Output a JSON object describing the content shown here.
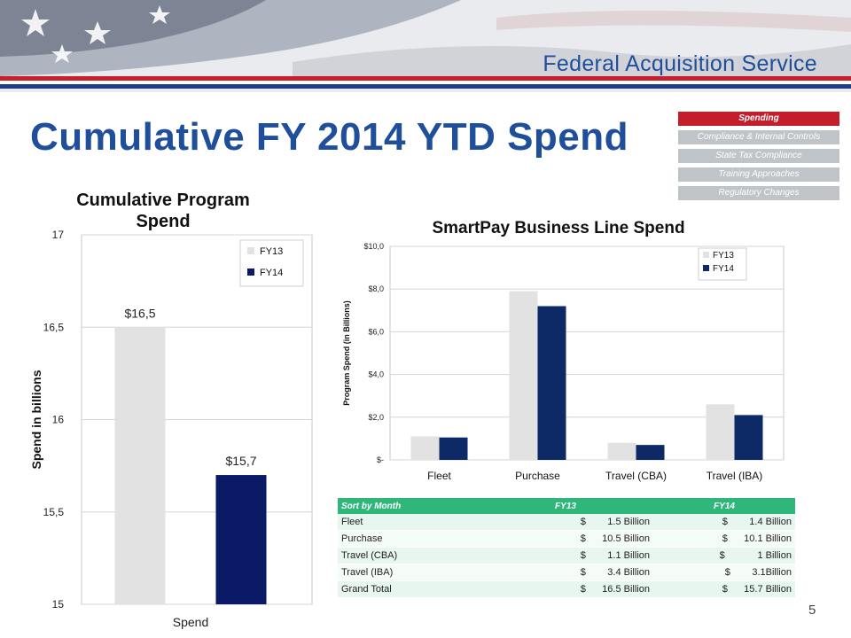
{
  "header": {
    "service_name": "Federal Acquisition Service",
    "title": "Cumulative FY 2014 YTD Spend"
  },
  "nav": {
    "items": [
      {
        "label": "Spending",
        "active": true
      },
      {
        "label": "Compliance & Internal Controls",
        "active": false
      },
      {
        "label": "State Tax Compliance",
        "active": false
      },
      {
        "label": "Training Approaches",
        "active": false
      },
      {
        "label": "Regulatory Changes",
        "active": false
      }
    ]
  },
  "colors": {
    "fy13": "#e2e2e2",
    "fy14": "#0b1a66",
    "fy14_alt": "#0d2a66",
    "accent_red": "#c41e2a",
    "table_header": "#2fb779",
    "title_blue": "#1f4e9a"
  },
  "chart_data": [
    {
      "type": "bar",
      "title": "Cumulative Program Spend",
      "title_lines": [
        "Cumulative Program",
        "Spend"
      ],
      "categories": [
        "Spend"
      ],
      "series": [
        {
          "name": "FY13",
          "values": [
            16.5
          ],
          "label": "$16,5"
        },
        {
          "name": "FY14",
          "values": [
            15.7
          ],
          "label": "$15,7"
        }
      ],
      "ylabel": "Spend in billions",
      "xlabel": "",
      "ylim": [
        15,
        17
      ],
      "yticks": [
        15,
        15.5,
        16,
        16.5,
        17
      ],
      "ytick_labels": [
        "15",
        "15,5",
        "16",
        "16,5",
        "17"
      ],
      "legend": "top-right",
      "grid": true
    },
    {
      "type": "bar",
      "title": "SmartPay Business Line Spend",
      "categories": [
        "Fleet",
        "Purchase",
        "Travel (CBA)",
        "Travel (IBA)"
      ],
      "series": [
        {
          "name": "FY13",
          "values": [
            1.1,
            7.9,
            0.8,
            2.6
          ]
        },
        {
          "name": "FY14",
          "values": [
            1.05,
            7.2,
            0.7,
            2.1
          ]
        }
      ],
      "ylabel": "Program Spend (in Billions)",
      "xlabel": "",
      "ylim": [
        0,
        10
      ],
      "yticks": [
        0,
        2,
        4,
        6,
        8,
        10
      ],
      "ytick_labels": [
        "$-",
        "$2,0",
        "$4,0",
        "$6,0",
        "$8,0",
        "$10,0"
      ],
      "legend": "top-right",
      "grid": true
    }
  ],
  "table": {
    "headers": [
      "Sort by Month",
      "FY13",
      "FY14"
    ],
    "rows": [
      [
        "Fleet",
        "$        1.5 Billion",
        "$        1.4 Billion"
      ],
      [
        "Purchase",
        "$      10.5 Billion",
        "$      10.1 Billion"
      ],
      [
        "Travel (CBA)",
        "$        1.1 Billion",
        "$            1 Billion"
      ],
      [
        "Travel (IBA)",
        "$        3.4 Billion",
        "$        3.1Billion"
      ],
      [
        "Grand Total",
        "$      16.5 Billion",
        "$      15.7 Billion"
      ]
    ]
  },
  "page_number": "5"
}
